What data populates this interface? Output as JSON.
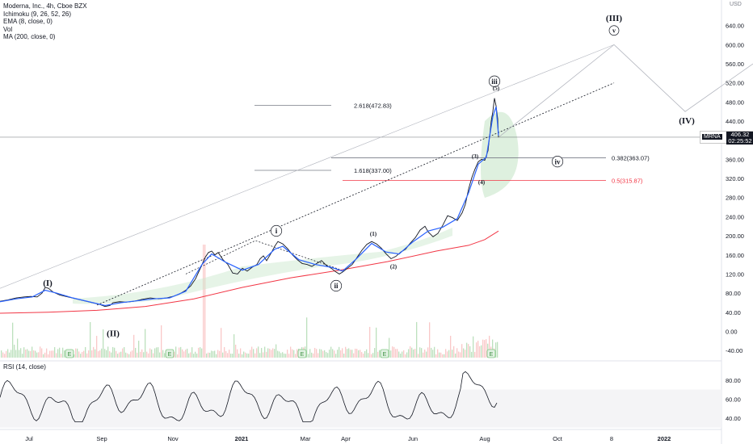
{
  "legend": {
    "title": "Moderna, Inc., 4h, Cboe BZX",
    "indicators": [
      "Ichimoku (9, 26, 52, 26)",
      "EMA (8, close, 0)",
      "Vol",
      "MA (200, close, 0)"
    ]
  },
  "currency": "USD",
  "price_tag": {
    "symbol": "MRNA",
    "price": "406.32",
    "countdown": "02:25:52"
  },
  "rsi_label": "RSI (14, close)",
  "colors": {
    "price": "#131722",
    "ema": "#2962ff",
    "ma200": "#f23645",
    "cloud": "#c8e6c9",
    "fib_red": "#f23645",
    "grid": "#f0f3fa"
  },
  "chart_data": {
    "type": "line",
    "symbol": "MRNA",
    "timeframe": "4h",
    "x_ticks": [
      "Jul",
      "Sep",
      "Nov",
      "2021",
      "Mar",
      "Apr",
      "Jun",
      "Aug",
      "Oct",
      "8",
      "2022"
    ],
    "y_ticks": [
      -40,
      0,
      40,
      80,
      120,
      160,
      200,
      240,
      280,
      320,
      360,
      400,
      440,
      480,
      520,
      560,
      600,
      640
    ],
    "ylim": [
      -55,
      680
    ],
    "rsi_ticks": [
      40,
      60,
      80
    ],
    "rsi_ylim": [
      28,
      96
    ],
    "price_series": [
      [
        0,
        63
      ],
      [
        10,
        66
      ],
      [
        20,
        70
      ],
      [
        30,
        72
      ],
      [
        38,
        73
      ],
      [
        46,
        72
      ],
      [
        52,
        80
      ],
      [
        56,
        92
      ],
      [
        60,
        90
      ],
      [
        66,
        82
      ],
      [
        74,
        76
      ],
      [
        84,
        72
      ],
      [
        94,
        68
      ],
      [
        104,
        64
      ],
      [
        114,
        60
      ],
      [
        124,
        56
      ],
      [
        130,
        52
      ],
      [
        136,
        54
      ],
      [
        140,
        60
      ],
      [
        148,
        62
      ],
      [
        156,
        61
      ],
      [
        166,
        63
      ],
      [
        176,
        67
      ],
      [
        186,
        70
      ],
      [
        196,
        68
      ],
      [
        206,
        70
      ],
      [
        214,
        73
      ],
      [
        222,
        78
      ],
      [
        230,
        86
      ],
      [
        236,
        95
      ],
      [
        242,
        110
      ],
      [
        248,
        132
      ],
      [
        254,
        155
      ],
      [
        258,
        165
      ],
      [
        262,
        168
      ],
      [
        266,
        160
      ],
      [
        270,
        165
      ],
      [
        276,
        150
      ],
      [
        282,
        140
      ],
      [
        288,
        122
      ],
      [
        294,
        120
      ],
      [
        300,
        132
      ],
      [
        306,
        126
      ],
      [
        312,
        134
      ],
      [
        318,
        140
      ],
      [
        322,
        152
      ],
      [
        326,
        158
      ],
      [
        330,
        148
      ],
      [
        336,
        165
      ],
      [
        340,
        178
      ],
      [
        344,
        188
      ],
      [
        350,
        183
      ],
      [
        356,
        173
      ],
      [
        362,
        160
      ],
      [
        368,
        150
      ],
      [
        374,
        142
      ],
      [
        380,
        140
      ],
      [
        386,
        136
      ],
      [
        392,
        142
      ],
      [
        398,
        148
      ],
      [
        404,
        138
      ],
      [
        410,
        132
      ],
      [
        416,
        124
      ],
      [
        420,
        120
      ],
      [
        424,
        124
      ],
      [
        430,
        132
      ],
      [
        436,
        140
      ],
      [
        442,
        155
      ],
      [
        448,
        170
      ],
      [
        454,
        182
      ],
      [
        460,
        188
      ],
      [
        466,
        183
      ],
      [
        472,
        174
      ],
      [
        478,
        162
      ],
      [
        484,
        152
      ],
      [
        490,
        157
      ],
      [
        496,
        166
      ],
      [
        502,
        172
      ],
      [
        508,
        185
      ],
      [
        514,
        196
      ],
      [
        520,
        212
      ],
      [
        526,
        220
      ],
      [
        530,
        208
      ],
      [
        536,
        198
      ],
      [
        542,
        205
      ],
      [
        548,
        222
      ],
      [
        554,
        242
      ],
      [
        560,
        238
      ],
      [
        566,
        232
      ],
      [
        572,
        248
      ],
      [
        576,
        266
      ],
      [
        580,
        298
      ],
      [
        584,
        322
      ],
      [
        588,
        340
      ],
      [
        592,
        355
      ],
      [
        596,
        360
      ],
      [
        600,
        358
      ],
      [
        604,
        378
      ],
      [
        606,
        408
      ],
      [
        608,
        440
      ],
      [
        610,
        460
      ],
      [
        612,
        488
      ],
      [
        614,
        472
      ],
      [
        616,
        445
      ],
      [
        617,
        406
      ]
    ],
    "ema_series": [
      [
        0,
        62
      ],
      [
        20,
        68
      ],
      [
        40,
        72
      ],
      [
        56,
        86
      ],
      [
        70,
        80
      ],
      [
        90,
        70
      ],
      [
        110,
        62
      ],
      [
        130,
        54
      ],
      [
        150,
        60
      ],
      [
        170,
        64
      ],
      [
        190,
        68
      ],
      [
        210,
        70
      ],
      [
        230,
        84
      ],
      [
        250,
        140
      ],
      [
        262,
        162
      ],
      [
        280,
        144
      ],
      [
        300,
        128
      ],
      [
        320,
        140
      ],
      [
        340,
        172
      ],
      [
        350,
        178
      ],
      [
        370,
        150
      ],
      [
        390,
        140
      ],
      [
        410,
        134
      ],
      [
        424,
        126
      ],
      [
        440,
        150
      ],
      [
        460,
        184
      ],
      [
        478,
        166
      ],
      [
        494,
        162
      ],
      [
        510,
        186
      ],
      [
        530,
        210
      ],
      [
        548,
        218
      ],
      [
        566,
        236
      ],
      [
        580,
        290
      ],
      [
        592,
        350
      ],
      [
        602,
        365
      ],
      [
        610,
        450
      ],
      [
        614,
        470
      ],
      [
        617,
        410
      ]
    ],
    "ma200_series": [
      [
        0,
        38
      ],
      [
        60,
        40
      ],
      [
        120,
        44
      ],
      [
        180,
        52
      ],
      [
        240,
        68
      ],
      [
        300,
        92
      ],
      [
        360,
        112
      ],
      [
        420,
        128
      ],
      [
        480,
        146
      ],
      [
        540,
        168
      ],
      [
        580,
        180
      ],
      [
        600,
        192
      ],
      [
        617,
        210
      ]
    ],
    "fib_levels": [
      {
        "label": "2.618(472.83)",
        "value": 472.83
      },
      {
        "label": "1.618(337.00)",
        "value": 337.0
      },
      {
        "label": "0.382(363.07)",
        "value": 363.07
      },
      {
        "label": "0.5(315.87)",
        "value": 315.87
      }
    ],
    "wave_labels": [
      "(I)",
      "(II)",
      "(III)",
      "(IV)",
      "i",
      "ii",
      "iii",
      "iv",
      "v",
      "(1)",
      "(2)",
      "(3)",
      "(4)",
      "(5)"
    ],
    "annotations": [
      "E"
    ],
    "projection_path": [
      [
        617,
        406
      ],
      [
        760,
        600
      ],
      [
        848,
        460
      ],
      [
        932,
        560
      ]
    ]
  }
}
